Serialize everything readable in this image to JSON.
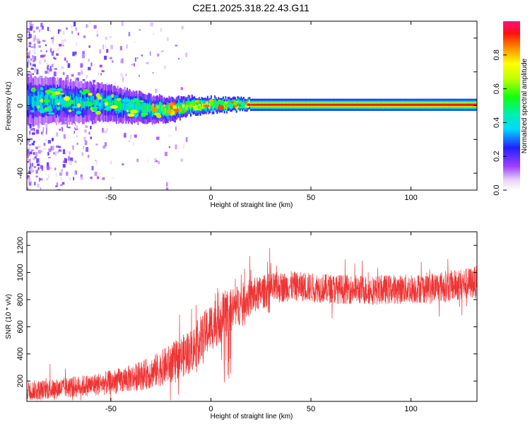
{
  "title": "C2E1.2025.318.22.43.G11",
  "chart_data": [
    {
      "type": "heatmap",
      "xlabel": "Height of straight line (km)",
      "ylabel": "Frequency (Hz)",
      "xlim": [
        -92,
        133
      ],
      "ylim": [
        -50,
        50
      ],
      "xticks": [
        -50,
        0,
        50,
        100
      ],
      "yticks": [
        -40,
        -20,
        0,
        20,
        40
      ],
      "colorbar": {
        "label": "Normalized spectral amplitude",
        "range": [
          0,
          1
        ],
        "ticks": [
          0.0,
          0.2,
          0.4,
          0.6,
          0.8
        ],
        "colormap": "rainbow (purple to red)"
      },
      "trace": [
        {
          "x": -90,
          "f": 3.0,
          "w": 8.0,
          "a": 0.45
        },
        {
          "x": -70,
          "f": 2.5,
          "w": 7.0,
          "a": 0.45
        },
        {
          "x": -50,
          "f": 1.5,
          "w": 6.0,
          "a": 0.5
        },
        {
          "x": -35,
          "f": -1.5,
          "w": 5.0,
          "a": 0.55
        },
        {
          "x": -20,
          "f": -2.5,
          "w": 4.0,
          "a": 0.65
        },
        {
          "x": -10,
          "f": 0.0,
          "w": 3.0,
          "a": 0.8
        },
        {
          "x": 0,
          "f": 0.5,
          "w": 2.5,
          "a": 0.85
        },
        {
          "x": 20,
          "f": 0.5,
          "w": 2.0,
          "a": 0.95
        },
        {
          "x": 133,
          "f": 0.5,
          "w": 2.0,
          "a": 1.0
        }
      ]
    },
    {
      "type": "line",
      "xlabel": "Height of straight line (km)",
      "ylabel": "SNR (10 * v/v)",
      "xlim": [
        -92,
        133
      ],
      "ylim": [
        50,
        1300
      ],
      "xticks": [
        -50,
        0,
        50,
        100
      ],
      "yticks": [
        200,
        400,
        600,
        800,
        1000,
        1200
      ],
      "color": "#ef3434",
      "envelope": {
        "x": [
          -92,
          -80,
          -60,
          -50,
          -40,
          -30,
          -20,
          -10,
          0,
          5,
          10,
          20,
          30,
          40,
          60,
          80,
          100,
          120,
          133
        ],
        "mean": [
          130,
          140,
          170,
          190,
          220,
          260,
          330,
          420,
          600,
          680,
          720,
          820,
          880,
          900,
          880,
          870,
          880,
          900,
          930
        ],
        "spread": [
          80,
          80,
          90,
          100,
          110,
          130,
          160,
          180,
          200,
          220,
          180,
          150,
          130,
          120,
          120,
          120,
          120,
          130,
          130
        ]
      }
    }
  ]
}
